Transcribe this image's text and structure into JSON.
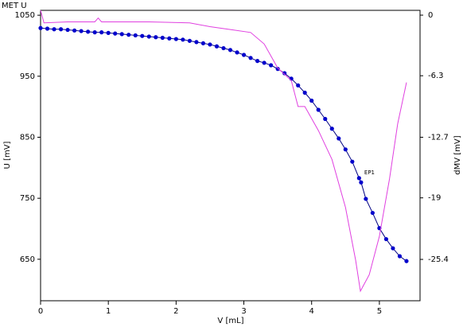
{
  "chart_data": {
    "type": "line",
    "title": "MET U",
    "xlabel": "V [mL]",
    "ylabel": "U [mV]",
    "y2label": "dMV [mV]",
    "xlim": [
      0,
      5.6
    ],
    "xticks": [
      0,
      1,
      2,
      3,
      4,
      5
    ],
    "ylim": [
      582,
      1058
    ],
    "yticks": [
      650,
      750,
      850,
      950,
      1050
    ],
    "y2lim": [
      -29.7,
      0.5
    ],
    "y2ticks": [
      0,
      -6.3,
      -12.7,
      -19,
      -25.4
    ],
    "ylabel_color": "#1a1aa0",
    "y2label_color": "#d040d0",
    "series": [
      {
        "color": "#0000cc",
        "line_color": "#000080",
        "markers": true,
        "x": [
          0,
          0.1,
          0.2,
          0.3,
          0.4,
          0.5,
          0.6,
          0.7,
          0.8,
          0.9,
          1.0,
          1.1,
          1.2,
          1.3,
          1.4,
          1.5,
          1.6,
          1.7,
          1.8,
          1.9,
          2.0,
          2.1,
          2.2,
          2.3,
          2.4,
          2.5,
          2.6,
          2.7,
          2.8,
          2.9,
          3.0,
          3.1,
          3.2,
          3.3,
          3.4,
          3.5,
          3.6,
          3.7,
          3.8,
          3.9,
          4.0,
          4.1,
          4.2,
          4.3,
          4.4,
          4.5,
          4.6,
          4.7,
          4.73,
          4.8,
          4.9,
          5.0,
          5.1,
          5.2,
          5.3,
          5.4
        ],
        "values": [
          1029,
          1028,
          1027,
          1027,
          1026,
          1025,
          1024,
          1023,
          1022,
          1022,
          1021,
          1020,
          1019,
          1018,
          1017,
          1016,
          1015,
          1014,
          1013,
          1012,
          1011,
          1010,
          1008,
          1006,
          1004,
          1002,
          999,
          996,
          993,
          989,
          985,
          980,
          975,
          972,
          968,
          962,
          955,
          946,
          935,
          923,
          910,
          895,
          880,
          864,
          848,
          830,
          810,
          783,
          776,
          749,
          726,
          701,
          683,
          668,
          655,
          647
        ]
      },
      {
        "color": "#e040e0",
        "axis": "y2",
        "markers": false,
        "x": [
          0,
          0.05,
          0.4,
          0.8,
          0.85,
          0.9,
          1.6,
          2.2,
          2.5,
          2.8,
          3.1,
          3.3,
          3.5,
          3.7,
          3.8,
          3.9,
          4.1,
          4.3,
          4.5,
          4.65,
          4.72,
          4.85,
          5.0,
          5.15,
          5.27,
          5.4
        ],
        "values": [
          0.5,
          -0.8,
          -0.7,
          -0.7,
          -0.3,
          -0.7,
          -0.7,
          -0.8,
          -1.2,
          -1.5,
          -1.8,
          -3,
          -5.5,
          -6.8,
          -9.5,
          -9.5,
          -12,
          -15,
          -20,
          -25.5,
          -28.7,
          -27,
          -23,
          -17,
          -11.3,
          -7
        ]
      }
    ],
    "annotations": [
      {
        "text": "EP1",
        "x": 4.73,
        "y": 776
      }
    ]
  }
}
